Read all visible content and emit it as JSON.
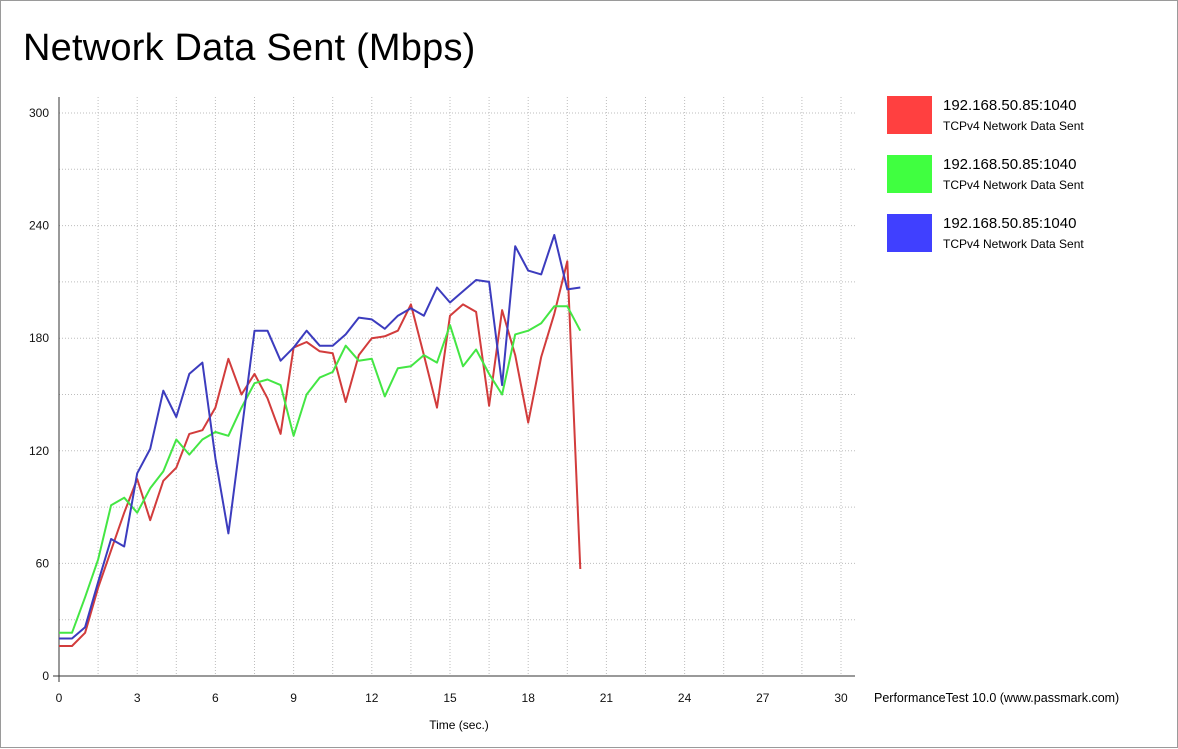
{
  "title": "Network Data Sent (Mbps)",
  "credit": "PerformanceTest 10.0 (www.passmark.com)",
  "chart_data": {
    "type": "line",
    "title": "Network Data Sent (Mbps)",
    "xlabel": "Time (sec.)",
    "ylabel": "",
    "xlim": [
      0,
      30
    ],
    "ylim": [
      0,
      300
    ],
    "xticks": [
      0,
      3,
      6,
      9,
      12,
      15,
      18,
      21,
      24,
      27,
      30
    ],
    "yticks": [
      0,
      60,
      120,
      180,
      240,
      300
    ],
    "grid": true,
    "legend_position": "right",
    "series": [
      {
        "name": "192.168.50.85:1040",
        "subtitle": "TCPv4 Network Data Sent",
        "color": "#ff4040",
        "line_color": "#d23c3c",
        "x": [
          0.0,
          0.5,
          1.0,
          1.5,
          2.0,
          2.5,
          3.0,
          3.5,
          4.0,
          4.5,
          5.0,
          5.5,
          6.0,
          6.5,
          7.0,
          7.5,
          8.0,
          8.5,
          9.0,
          9.5,
          10.0,
          10.5,
          11.0,
          11.5,
          12.0,
          12.5,
          13.0,
          13.5,
          14.0,
          14.5,
          15.0,
          15.5,
          16.0,
          16.5,
          17.0,
          17.5,
          18.0,
          18.5,
          19.0,
          19.5,
          20.0
        ],
        "y": [
          16,
          16,
          23,
          47,
          67,
          87,
          105,
          83,
          104,
          111,
          129,
          131,
          143,
          169,
          150,
          161,
          148,
          129,
          175,
          178,
          173,
          172,
          146,
          171,
          180,
          181,
          184,
          198,
          171,
          143,
          192,
          198,
          194,
          144,
          195,
          171,
          135,
          170,
          193,
          221,
          57
        ]
      },
      {
        "name": "192.168.50.85:1040",
        "subtitle": "TCPv4 Network Data Sent",
        "color": "#40ff40",
        "line_color": "#44e644",
        "x": [
          0.0,
          0.5,
          1.0,
          1.5,
          2.0,
          2.5,
          3.0,
          3.5,
          4.0,
          4.5,
          5.0,
          5.5,
          6.0,
          6.5,
          7.0,
          7.5,
          8.0,
          8.5,
          9.0,
          9.5,
          10.0,
          10.5,
          11.0,
          11.5,
          12.0,
          12.5,
          13.0,
          13.5,
          14.0,
          14.5,
          15.0,
          15.5,
          16.0,
          16.5,
          17.0,
          17.5,
          18.0,
          18.5,
          19.0,
          19.5,
          20.0
        ],
        "y": [
          23,
          23,
          42,
          62,
          91,
          95,
          87,
          100,
          109,
          126,
          118,
          126,
          130,
          128,
          143,
          156,
          158,
          155,
          128,
          150,
          159,
          162,
          176,
          168,
          169,
          149,
          164,
          165,
          171,
          167,
          187,
          165,
          174,
          161,
          150,
          182,
          184,
          188,
          197,
          197,
          184
        ]
      },
      {
        "name": "192.168.50.85:1040",
        "subtitle": "TCPv4 Network Data Sent",
        "color": "#4040ff",
        "line_color": "#3c3cbe",
        "x": [
          0.0,
          0.5,
          1.0,
          1.5,
          2.0,
          2.5,
          3.0,
          3.5,
          4.0,
          4.5,
          5.0,
          5.5,
          6.0,
          6.5,
          7.0,
          7.5,
          8.0,
          8.5,
          9.0,
          9.5,
          10.0,
          10.5,
          11.0,
          11.5,
          12.0,
          12.5,
          13.0,
          13.5,
          14.0,
          14.5,
          15.0,
          15.5,
          16.0,
          16.5,
          17.0,
          17.5,
          18.0,
          18.5,
          19.0,
          19.5,
          20.0
        ],
        "y": [
          20,
          20,
          26,
          50,
          73,
          69,
          108,
          121,
          152,
          138,
          161,
          167,
          116,
          76,
          130,
          184,
          184,
          168,
          175,
          184,
          176,
          176,
          182,
          191,
          190,
          185,
          192,
          196,
          192,
          207,
          199,
          205,
          211,
          210,
          155,
          229,
          216,
          214,
          235,
          206,
          207
        ]
      }
    ]
  }
}
